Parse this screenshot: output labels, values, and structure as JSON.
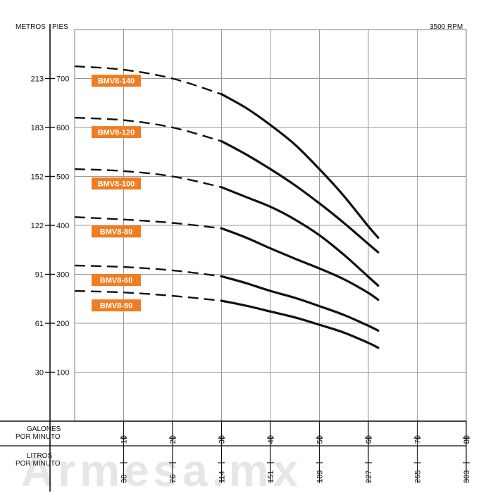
{
  "chart_data": {
    "type": "line",
    "rpm_label": "3500 RPM",
    "watermark": "Armesa.mx",
    "y_axis": {
      "title_left": "METROS",
      "title_right": "PIES",
      "pies_ticks": [
        100,
        200,
        300,
        400,
        500,
        600,
        700
      ],
      "metros_ticks": [
        "30",
        "61",
        "91",
        "122",
        "152",
        "183",
        "213"
      ],
      "ylim": [
        0,
        800
      ]
    },
    "x_axis": {
      "gpm_title": [
        "GALONES",
        "POR MINUTO"
      ],
      "lpm_title": [
        "LITROS",
        "POR MINUTO"
      ],
      "gpm_ticks": [
        10,
        20,
        30,
        40,
        50,
        60,
        70,
        80
      ],
      "lpm_ticks": [
        "38",
        "76",
        "114",
        "151",
        "189",
        "227",
        "265",
        "303"
      ],
      "xlim": [
        0,
        80
      ]
    },
    "grid": true,
    "series": [
      {
        "name": "BMV8-140",
        "dashed": [
          [
            0,
            725
          ],
          [
            10,
            718
          ],
          [
            20,
            700
          ],
          [
            30,
            668
          ]
        ],
        "solid": [
          [
            30,
            668
          ],
          [
            35,
            640
          ],
          [
            40,
            605
          ],
          [
            45,
            565
          ],
          [
            50,
            515
          ],
          [
            55,
            460
          ],
          [
            60,
            398
          ],
          [
            62,
            375
          ]
        ]
      },
      {
        "name": "BMV8-120",
        "dashed": [
          [
            0,
            620
          ],
          [
            10,
            615
          ],
          [
            20,
            600
          ],
          [
            30,
            572
          ]
        ],
        "solid": [
          [
            30,
            572
          ],
          [
            35,
            545
          ],
          [
            40,
            515
          ],
          [
            45,
            482
          ],
          [
            50,
            445
          ],
          [
            55,
            405
          ],
          [
            60,
            362
          ],
          [
            62,
            345
          ]
        ]
      },
      {
        "name": "BMV8-100",
        "dashed": [
          [
            0,
            515
          ],
          [
            10,
            511
          ],
          [
            20,
            500
          ],
          [
            30,
            478
          ]
        ],
        "solid": [
          [
            30,
            478
          ],
          [
            35,
            458
          ],
          [
            40,
            438
          ],
          [
            45,
            412
          ],
          [
            50,
            380
          ],
          [
            55,
            340
          ],
          [
            60,
            295
          ],
          [
            62,
            277
          ]
        ]
      },
      {
        "name": "BMV8-80",
        "dashed": [
          [
            0,
            417
          ],
          [
            10,
            412
          ],
          [
            20,
            405
          ],
          [
            30,
            394
          ]
        ],
        "solid": [
          [
            30,
            394
          ],
          [
            35,
            375
          ],
          [
            40,
            353
          ],
          [
            45,
            332
          ],
          [
            50,
            312
          ],
          [
            55,
            290
          ],
          [
            60,
            262
          ],
          [
            62,
            248
          ]
        ]
      },
      {
        "name": "BMV8-60",
        "dashed": [
          [
            0,
            318
          ],
          [
            10,
            315
          ],
          [
            20,
            308
          ],
          [
            30,
            296
          ]
        ],
        "solid": [
          [
            30,
            296
          ],
          [
            35,
            282
          ],
          [
            40,
            266
          ],
          [
            45,
            252
          ],
          [
            50,
            235
          ],
          [
            55,
            217
          ],
          [
            60,
            195
          ],
          [
            62,
            185
          ]
        ]
      },
      {
        "name": "BMV8-50",
        "dashed": [
          [
            0,
            266
          ],
          [
            10,
            263
          ],
          [
            20,
            256
          ],
          [
            30,
            246
          ]
        ],
        "solid": [
          [
            30,
            246
          ],
          [
            35,
            236
          ],
          [
            40,
            224
          ],
          [
            45,
            212
          ],
          [
            50,
            197
          ],
          [
            55,
            181
          ],
          [
            60,
            160
          ],
          [
            62,
            150
          ]
        ]
      }
    ],
    "badge_color": "#ef7d22",
    "line_color": "#111111"
  }
}
